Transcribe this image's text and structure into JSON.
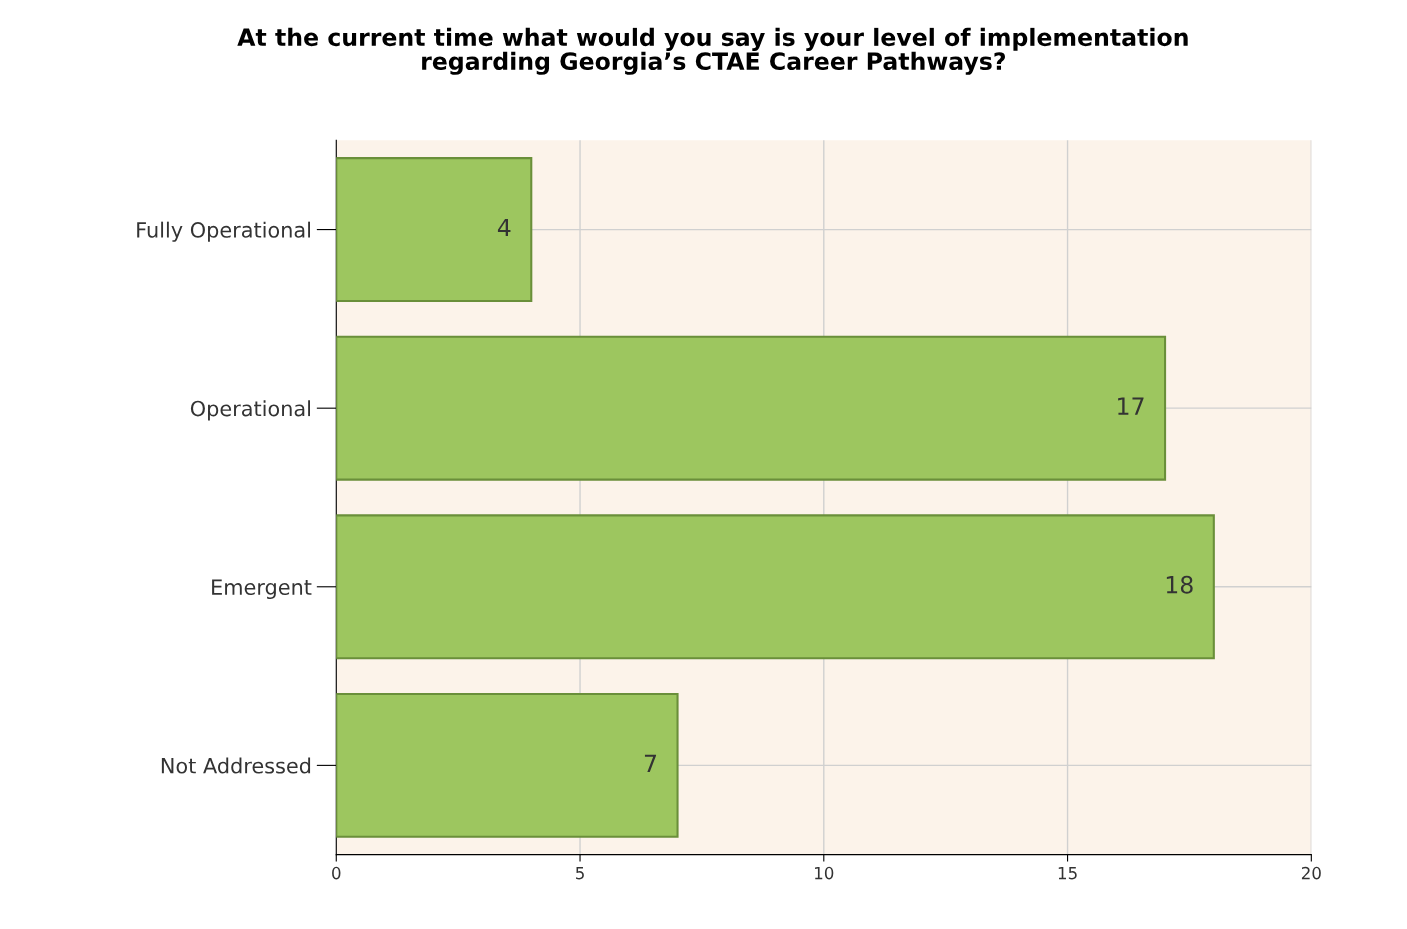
{
  "chart_data": {
    "type": "bar",
    "orientation": "horizontal",
    "title": "At the current time what would you say is your level of implementation\nregarding Georgia’s CTAE Career Pathways?",
    "categories": [
      "Fully Operational",
      "Operational",
      "Emergent",
      "Not Addressed"
    ],
    "values": [
      4,
      17,
      18,
      7
    ],
    "color": "#9dc65f",
    "xlim": [
      0,
      20
    ],
    "xticks": [
      0,
      5,
      10,
      15,
      20
    ],
    "grid": true,
    "data_labels": true,
    "legend": false
  }
}
